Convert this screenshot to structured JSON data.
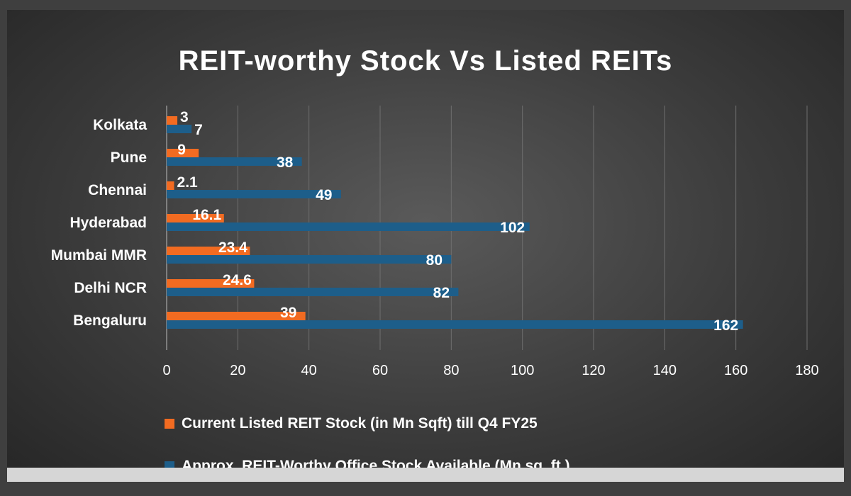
{
  "chart_data": {
    "type": "bar",
    "orientation": "horizontal",
    "title": "REIT-worthy Stock Vs Listed REITs",
    "categories": [
      "Bengaluru",
      "Delhi NCR",
      "Mumbai MMR",
      "Hyderabad",
      "Chennai",
      "Pune",
      "Kolkata"
    ],
    "series": [
      {
        "name": "Current Listed REIT Stock (in Mn Sqft)  till Q4 FY25",
        "color": "#f26b21",
        "values": [
          39,
          24.6,
          23.4,
          16.1,
          2.1,
          9,
          3
        ],
        "labels": [
          "39",
          "24.6",
          "23.4",
          "16.1",
          "2.1",
          "9",
          "3"
        ]
      },
      {
        "name": "Approx. REIT-Worthy Office Stock Available (Mn sq. ft.)",
        "color": "#1d5e8a",
        "values": [
          162,
          82,
          80,
          102,
          49,
          38,
          7
        ],
        "labels": [
          "162",
          "82",
          "80",
          "102",
          "49",
          "38",
          "7"
        ]
      }
    ],
    "xlim": [
      0,
      180
    ],
    "xticks": [
      "0",
      "20",
      "40",
      "60",
      "80",
      "100",
      "120",
      "140",
      "160",
      "180"
    ],
    "grid": true,
    "legend_position": "bottom"
  }
}
